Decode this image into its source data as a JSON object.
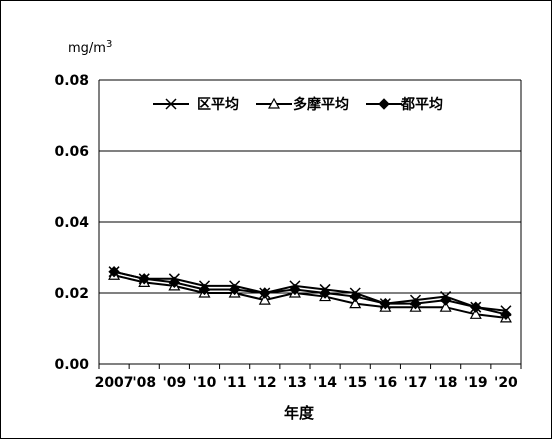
{
  "chart_data": {
    "type": "line",
    "unit_label": "mg/m",
    "unit_sup": "3",
    "xlabel": "年度",
    "ylabel": "",
    "ylim": [
      0,
      0.08
    ],
    "y_ticks": [
      "0.00",
      "0.02",
      "0.04",
      "0.06",
      "0.08"
    ],
    "y_tick_values": [
      0,
      0.02,
      0.04,
      0.06,
      0.08
    ],
    "grid": "horizontal",
    "legend_position": "top",
    "categories": [
      "2007",
      "'08",
      "'09",
      "'10",
      "'11",
      "'12",
      "'13",
      "'14",
      "'15",
      "'16",
      "'17",
      "'18",
      "'19",
      "'20"
    ],
    "series": [
      {
        "name": "区平均",
        "marker": "x",
        "values": [
          0.026,
          0.024,
          0.024,
          0.022,
          0.022,
          0.02,
          0.022,
          0.021,
          0.02,
          0.017,
          0.018,
          0.019,
          0.016,
          0.015
        ]
      },
      {
        "name": "多摩平均",
        "marker": "triangle",
        "values": [
          0.025,
          0.023,
          0.022,
          0.02,
          0.02,
          0.018,
          0.02,
          0.019,
          0.017,
          0.016,
          0.016,
          0.016,
          0.014,
          0.013
        ]
      },
      {
        "name": "都平均",
        "marker": "diamond",
        "values": [
          0.026,
          0.024,
          0.023,
          0.021,
          0.021,
          0.02,
          0.021,
          0.02,
          0.019,
          0.017,
          0.017,
          0.018,
          0.016,
          0.014
        ]
      }
    ],
    "colors": {
      "line": "#000000",
      "grid": "#000000",
      "background": "#ffffff"
    }
  }
}
